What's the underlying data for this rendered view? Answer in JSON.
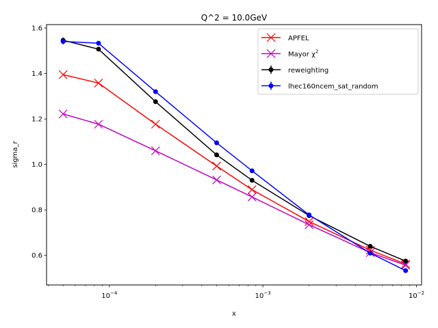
{
  "chart_data": {
    "type": "line",
    "title": "Q^2 = 10.0GeV",
    "xlabel": "x",
    "ylabel": "sigma_r",
    "xscale": "log",
    "xlim": [
      3.9e-05,
      0.0108
    ],
    "ylim": [
      0.47,
      1.615
    ],
    "x_ticks": [
      {
        "value": 0.0001,
        "base": "10",
        "exp": "−4"
      },
      {
        "value": 0.001,
        "base": "10",
        "exp": "−3"
      },
      {
        "value": 0.01,
        "base": "10",
        "exp": "−2"
      }
    ],
    "y_ticks": [
      {
        "value": 0.6,
        "label": "0.6"
      },
      {
        "value": 0.8,
        "label": "0.8"
      },
      {
        "value": 1.0,
        "label": "1.0"
      },
      {
        "value": 1.2,
        "label": "1.2"
      },
      {
        "value": 1.4,
        "label": "1.4"
      },
      {
        "value": 1.6,
        "label": "1.6"
      }
    ],
    "grid": false,
    "legend_position": "top-right",
    "x": [
      5e-05,
      8.5e-05,
      0.0002,
      0.0005,
      0.00085,
      0.002,
      0.005,
      0.0085
    ],
    "series": [
      {
        "name": "APFEL",
        "color": "#ff0000",
        "marker": "x",
        "values": [
          1.395,
          1.358,
          1.177,
          0.993,
          0.889,
          0.749,
          0.623,
          0.562
        ]
      },
      {
        "name": "Mayor χ",
        "name_sup": "2",
        "color": "#bf00bf",
        "marker": "x",
        "values": [
          1.222,
          1.177,
          1.06,
          0.932,
          0.857,
          0.735,
          0.612,
          0.557
        ]
      },
      {
        "name": "reweighting",
        "color": "#000000",
        "marker": "o",
        "errorbar": true,
        "values": [
          1.546,
          1.507,
          1.276,
          1.042,
          0.93,
          0.775,
          0.64,
          0.575
        ],
        "errors": [
          0.012,
          0.006,
          0.005,
          0.004,
          0.004,
          0.004,
          0.004,
          0.004
        ]
      },
      {
        "name": "lhec160ncem_sat_random",
        "color": "#0000ff",
        "marker": "o",
        "errorbar": true,
        "values": [
          1.541,
          1.533,
          1.32,
          1.095,
          0.972,
          0.778,
          0.61,
          0.533
        ],
        "errors": [
          0.013,
          0.006,
          0.005,
          0.004,
          0.004,
          0.004,
          0.004,
          0.004
        ]
      }
    ]
  }
}
